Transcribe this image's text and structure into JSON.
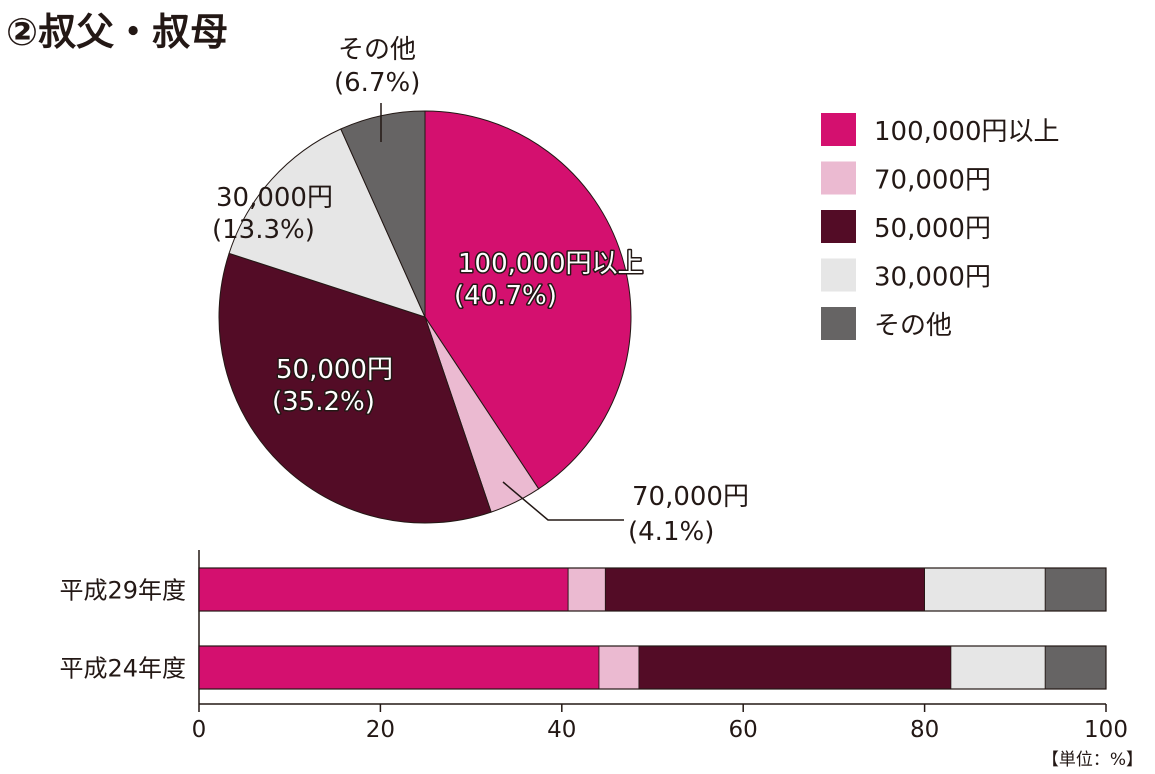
{
  "chart_data": [
    {
      "type": "pie",
      "title": "②叔父・叔母",
      "slices": [
        {
          "label": "100,000円以上",
          "value": 40.7,
          "display": "(40.7%)",
          "color": "#d4106f"
        },
        {
          "label": "70,000円",
          "value": 4.1,
          "display": "(4.1%)",
          "color": "#ebbad1"
        },
        {
          "label": "50,000円",
          "value": 35.2,
          "display": "(35.2%)",
          "color": "#530c26"
        },
        {
          "label": "30,000円",
          "value": 13.3,
          "display": "(13.3%)",
          "color": "#e6e6e6"
        },
        {
          "label": "その他",
          "value": 6.7,
          "display": "(6.7%)",
          "color": "#666464"
        }
      ],
      "legend": {
        "position": "top-right",
        "entries": [
          "100,000円以上",
          "70,000円",
          "50,000円",
          "30,000円",
          "その他"
        ]
      }
    },
    {
      "type": "bar",
      "orientation": "horizontal",
      "stacked": true,
      "categories": [
        "平成29年度",
        "平成24年度"
      ],
      "series": [
        {
          "name": "100,000円以上",
          "color": "#d4106f",
          "values": [
            40.7,
            44.1
          ]
        },
        {
          "name": "70,000円",
          "color": "#ebbad1",
          "values": [
            4.1,
            4.4
          ]
        },
        {
          "name": "50,000円",
          "color": "#530c26",
          "values": [
            35.2,
            34.4
          ]
        },
        {
          "name": "30,000円",
          "color": "#e6e6e6",
          "values": [
            13.3,
            10.4
          ]
        },
        {
          "name": "その他",
          "color": "#666464",
          "values": [
            6.7,
            6.7
          ]
        }
      ],
      "xlim": [
        0,
        100
      ],
      "xticks": [
        "0",
        "20",
        "40",
        "60",
        "80",
        "100"
      ],
      "unit_note": "【単位：%】"
    }
  ]
}
